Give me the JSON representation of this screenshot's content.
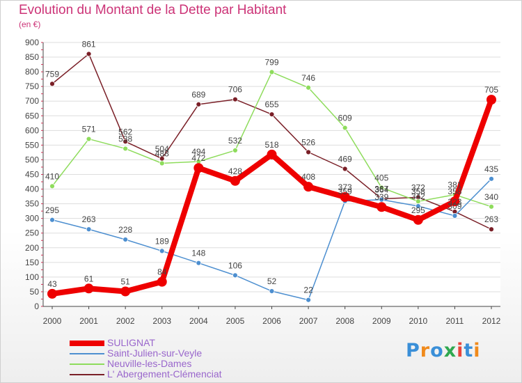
{
  "header": {
    "title": "Evolution du Montant de la Dette par Habitant",
    "subtitle": "(en €)"
  },
  "logo": {
    "text": "Proxiti",
    "letter_colors": [
      "#3a8fd8",
      "#f08a1c",
      "#3a8fd8",
      "#2fa84f",
      "#e8453c",
      "#3a8fd8",
      "#f08a1c"
    ]
  },
  "chart_data": {
    "type": "line",
    "title": "Evolution du Montant de la Dette par Habitant",
    "subtitle": "(en €)",
    "x": [
      "2000",
      "2001",
      "2002",
      "2003",
      "2004",
      "2005",
      "2006",
      "2007",
      "2008",
      "2009",
      "2010",
      "2011",
      "2012"
    ],
    "ylim": [
      0,
      900
    ],
    "yticks": [
      0,
      50,
      100,
      150,
      200,
      250,
      300,
      350,
      400,
      450,
      500,
      550,
      600,
      650,
      700,
      750,
      800,
      850,
      900
    ],
    "grid": "horizontal",
    "legend_position": "bottom-left",
    "series": [
      {
        "name": "L' Abergement-Clémenciat",
        "color": "#7a1f27",
        "values": [
          759,
          861,
          562,
          504,
          689,
          706,
          655,
          526,
          469,
          367,
          372,
          323,
          263
        ]
      },
      {
        "name": "Neuville-les-Dames",
        "color": "#8edc5c",
        "values": [
          410,
          571,
          538,
          488,
          494,
          532,
          799,
          746,
          609,
          405,
          358,
          381,
          340
        ]
      },
      {
        "name": "Saint-Julien-sur-Veyle",
        "color": "#4d8fd0",
        "values": [
          295,
          263,
          228,
          189,
          148,
          106,
          52,
          22,
          359,
          364,
          342,
          309,
          435
        ]
      },
      {
        "name": "SULIGNAT",
        "color": "#ee0000",
        "values": [
          43,
          61,
          51,
          84,
          472,
          428,
          518,
          408,
          373,
          339,
          295,
          358,
          705
        ]
      }
    ],
    "legend_order": [
      "SULIGNAT",
      "Saint-Julien-sur-Veyle",
      "Neuville-les-Dames",
      "L' Abergement-Clémenciat"
    ]
  }
}
